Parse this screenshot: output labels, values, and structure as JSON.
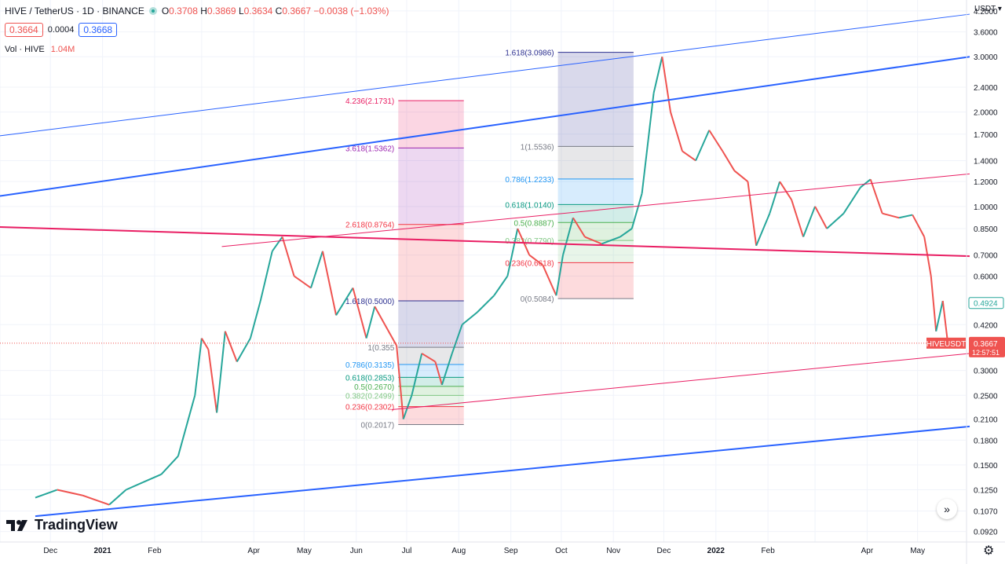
{
  "header": {
    "title": "HIVE / TetherUS · 1D · BINANCE",
    "open_label": "O",
    "open": "0.3708",
    "high_label": "H",
    "high": "0.3869",
    "low_label": "L",
    "low": "0.3634",
    "close_label": "C",
    "close": "0.3667",
    "change": "−0.0038 (−1.03%)",
    "bid": "0.3664",
    "spread": "0.0004",
    "ask": "0.3668",
    "volume_label": "Vol · HIVE",
    "volume_value": "1.04M"
  },
  "axis": {
    "currency": "USDT ▾"
  },
  "branding": {
    "name": "TradingView"
  },
  "colors": {
    "up": "#26a69a",
    "down": "#ef5350",
    "blue_line": "#2962ff",
    "pink_line": "#e91e63",
    "grid": "#f0f3fa"
  },
  "chart_data": {
    "type": "candlestick",
    "symbol": "HIVEUSDT",
    "scale": "log",
    "ylim": [
      0.0852,
      4.55
    ],
    "price_ticks": [
      "4.2000",
      "3.6000",
      "3.0000",
      "2.4000",
      "2.0000",
      "1.7000",
      "1.4000",
      "1.2000",
      "1.0000",
      "0.8500",
      "0.7000",
      "0.6000",
      "0.4200",
      "0.3000",
      "0.2500",
      "0.2100",
      "0.1800",
      "0.1500",
      "0.1250",
      "0.1070",
      "0.0920"
    ],
    "time_ticks": [
      "Dec",
      "2021",
      "Feb",
      "Apr",
      "May",
      "Jun",
      "Jul",
      "Aug",
      "Sep",
      "Oct",
      "Nov",
      "Dec",
      "2022",
      "Feb",
      "Apr",
      "May"
    ],
    "path": [
      {
        "date": "2020-11-22",
        "close": 0.118
      },
      {
        "date": "2020-12-05",
        "close": 0.125
      },
      {
        "date": "2020-12-20",
        "close": 0.12
      },
      {
        "date": "2021-01-05",
        "close": 0.112
      },
      {
        "date": "2021-01-15",
        "close": 0.125
      },
      {
        "date": "2021-01-25",
        "close": 0.132
      },
      {
        "date": "2021-02-05",
        "close": 0.14
      },
      {
        "date": "2021-02-15",
        "close": 0.16
      },
      {
        "date": "2021-02-25",
        "close": 0.25
      },
      {
        "date": "2021-03-01",
        "close": 0.38
      },
      {
        "date": "2021-03-05",
        "close": 0.35
      },
      {
        "date": "2021-03-10",
        "close": 0.22
      },
      {
        "date": "2021-03-15",
        "close": 0.4
      },
      {
        "date": "2021-03-22",
        "close": 0.32
      },
      {
        "date": "2021-03-30",
        "close": 0.38
      },
      {
        "date": "2021-04-05",
        "close": 0.5
      },
      {
        "date": "2021-04-12",
        "close": 0.72
      },
      {
        "date": "2021-04-18",
        "close": 0.8
      },
      {
        "date": "2021-04-25",
        "close": 0.6
      },
      {
        "date": "2021-05-05",
        "close": 0.55
      },
      {
        "date": "2021-05-12",
        "close": 0.72
      },
      {
        "date": "2021-05-20",
        "close": 0.45
      },
      {
        "date": "2021-05-30",
        "close": 0.55
      },
      {
        "date": "2021-06-07",
        "close": 0.38
      },
      {
        "date": "2021-06-12",
        "close": 0.48
      },
      {
        "date": "2021-06-18",
        "close": 0.42
      },
      {
        "date": "2021-06-25",
        "close": 0.36
      },
      {
        "date": "2021-06-29",
        "close": 0.21
      },
      {
        "date": "2021-07-04",
        "close": 0.25
      },
      {
        "date": "2021-07-10",
        "close": 0.34
      },
      {
        "date": "2021-07-18",
        "close": 0.32
      },
      {
        "date": "2021-07-22",
        "close": 0.27
      },
      {
        "date": "2021-07-28",
        "close": 0.34
      },
      {
        "date": "2021-08-03",
        "close": 0.42
      },
      {
        "date": "2021-08-12",
        "close": 0.46
      },
      {
        "date": "2021-08-22",
        "close": 0.52
      },
      {
        "date": "2021-08-30",
        "close": 0.6
      },
      {
        "date": "2021-09-05",
        "close": 0.85
      },
      {
        "date": "2021-09-12",
        "close": 0.7
      },
      {
        "date": "2021-09-20",
        "close": 0.65
      },
      {
        "date": "2021-09-28",
        "close": 0.52
      },
      {
        "date": "2021-10-02",
        "close": 0.7
      },
      {
        "date": "2021-10-08",
        "close": 0.92
      },
      {
        "date": "2021-10-15",
        "close": 0.8
      },
      {
        "date": "2021-10-25",
        "close": 0.76
      },
      {
        "date": "2021-11-05",
        "close": 0.8
      },
      {
        "date": "2021-11-12",
        "close": 0.85
      },
      {
        "date": "2021-11-18",
        "close": 1.1
      },
      {
        "date": "2021-11-25",
        "close": 2.3
      },
      {
        "date": "2021-11-30",
        "close": 3.0
      },
      {
        "date": "2021-12-05",
        "close": 2.0
      },
      {
        "date": "2021-12-12",
        "close": 1.5
      },
      {
        "date": "2021-12-20",
        "close": 1.4
      },
      {
        "date": "2021-12-28",
        "close": 1.75
      },
      {
        "date": "2022-01-05",
        "close": 1.5
      },
      {
        "date": "2022-01-12",
        "close": 1.3
      },
      {
        "date": "2022-01-20",
        "close": 1.2
      },
      {
        "date": "2022-01-25",
        "close": 0.75
      },
      {
        "date": "2022-02-02",
        "close": 0.95
      },
      {
        "date": "2022-02-08",
        "close": 1.2
      },
      {
        "date": "2022-02-15",
        "close": 1.05
      },
      {
        "date": "2022-02-22",
        "close": 0.8
      },
      {
        "date": "2022-03-01",
        "close": 1.0
      },
      {
        "date": "2022-03-08",
        "close": 0.85
      },
      {
        "date": "2022-03-18",
        "close": 0.95
      },
      {
        "date": "2022-03-28",
        "close": 1.15
      },
      {
        "date": "2022-04-03",
        "close": 1.22
      },
      {
        "date": "2022-04-10",
        "close": 0.95
      },
      {
        "date": "2022-04-20",
        "close": 0.92
      },
      {
        "date": "2022-04-28",
        "close": 0.94
      },
      {
        "date": "2022-05-05",
        "close": 0.8
      },
      {
        "date": "2022-05-09",
        "close": 0.6
      },
      {
        "date": "2022-05-12",
        "close": 0.4
      },
      {
        "date": "2022-05-16",
        "close": 0.5
      },
      {
        "date": "2022-05-19",
        "close": 0.3667
      }
    ],
    "last_price_label": "HIVEUSDT",
    "last_price": "0.3667",
    "countdown": "12:57:51",
    "ask_marker": "0.4924",
    "trend_lines": [
      {
        "color": "blue_line",
        "width": 1,
        "from": {
          "date": "2020-11-01",
          "price": 1.68
        },
        "to": {
          "date": "2022-06-01",
          "price": 4.1
        }
      },
      {
        "color": "blue_line",
        "width": 2,
        "from": {
          "date": "2020-11-01",
          "price": 1.08
        },
        "to": {
          "date": "2022-06-01",
          "price": 3.0
        }
      },
      {
        "color": "pink_line",
        "width": 2,
        "from": {
          "date": "2020-11-01",
          "price": 0.86
        },
        "to": {
          "date": "2022-06-01",
          "price": 0.694
        }
      },
      {
        "color": "pink_line",
        "width": 1,
        "from": {
          "date": "2021-03-13",
          "price": 0.745
        },
        "to": {
          "date": "2022-06-01",
          "price": 1.27
        }
      },
      {
        "color": "pink_line",
        "width": 1,
        "from": {
          "date": "2021-06-22",
          "price": 0.225
        },
        "to": {
          "date": "2022-06-01",
          "price": 0.34
        }
      },
      {
        "color": "blue_line",
        "width": 2,
        "from": {
          "date": "2020-11-22",
          "price": 0.103
        },
        "to": {
          "date": "2022-06-01",
          "price": 0.199
        }
      }
    ],
    "fib_tools": [
      {
        "date_from": "2021-06-26",
        "date_to": "2021-08-04",
        "levels": [
          {
            "ratio": "0",
            "value": "0.2017",
            "label": "0(0.2017)",
            "color": "#787b86"
          },
          {
            "ratio": "0.236",
            "value": "0.2302",
            "label": "0.236(0.2302)",
            "color": "#f23645"
          },
          {
            "ratio": "0.382",
            "value": "0.2499",
            "label": "0.382(0.2499)",
            "color": "#81c784"
          },
          {
            "ratio": "0.5",
            "value": "0.2670",
            "label": "0.5(0.2670)",
            "color": "#4caf50"
          },
          {
            "ratio": "0.618",
            "value": "0.2853",
            "label": "0.618(0.2853)",
            "color": "#089981"
          },
          {
            "ratio": "0.786",
            "value": "0.3135",
            "label": "0.786(0.3135)",
            "color": "#2196f3"
          },
          {
            "ratio": "1",
            "value": "0.3558",
            "label": "1(0.355",
            "color": "#787b86"
          },
          {
            "ratio": "1.618",
            "value": "0.5000",
            "label": "1.618(0.5000)",
            "color": "#2a2e8f"
          },
          {
            "ratio": "2.618",
            "value": "0.8764",
            "label": "2.618(0.8764)",
            "color": "#f23645"
          },
          {
            "ratio": "3.618",
            "value": "1.5362",
            "label": "3.618(1.5362)",
            "color": "#9c27b0"
          },
          {
            "ratio": "4.236",
            "value": "2.1731",
            "label": "4.236(2.1731)",
            "color": "#e91e63"
          }
        ]
      },
      {
        "date_from": "2021-09-29",
        "date_to": "2021-11-13",
        "levels": [
          {
            "ratio": "0",
            "value": "0.5084",
            "label": "0(0.5084)",
            "color": "#787b86"
          },
          {
            "ratio": "0.236",
            "value": "0.6618",
            "label": "0.236(0.6618)",
            "color": "#f23645"
          },
          {
            "ratio": "0.382",
            "value": "0.7790",
            "label": "0.382(0.7790)",
            "color": "#81c784"
          },
          {
            "ratio": "0.5",
            "value": "0.8887",
            "label": "0.5(0.8887)",
            "color": "#4caf50"
          },
          {
            "ratio": "0.618",
            "value": "1.0140",
            "label": "0.618(1.0140)",
            "color": "#089981"
          },
          {
            "ratio": "0.786",
            "value": "1.2233",
            "label": "0.786(1.2233)",
            "color": "#2196f3"
          },
          {
            "ratio": "1",
            "value": "1.5536",
            "label": "1(1.5536)",
            "color": "#787b86"
          },
          {
            "ratio": "1.618",
            "value": "3.0986",
            "label": "1.618(3.0986)",
            "color": "#2a2e8f"
          }
        ]
      }
    ]
  }
}
